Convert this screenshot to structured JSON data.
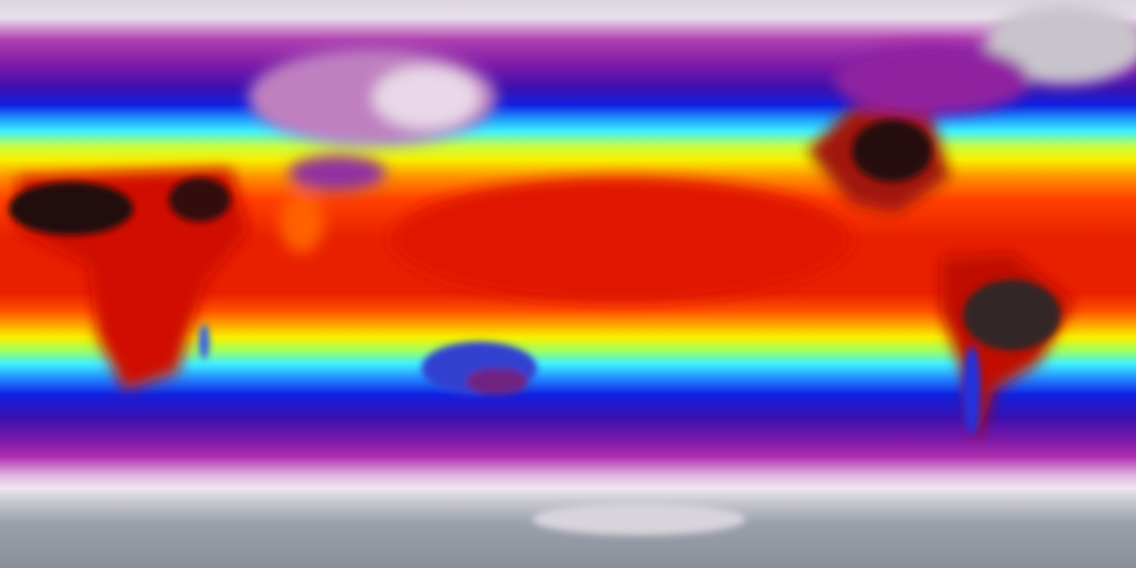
{
  "map": {
    "projection": "equirectangular",
    "colormap": [
      "#dcd6de",
      "#b040b0",
      "#3a10b0",
      "#1020e0",
      "#40f0ff",
      "#f8f000",
      "#ff9000",
      "#e82000",
      "#201010"
    ]
  }
}
